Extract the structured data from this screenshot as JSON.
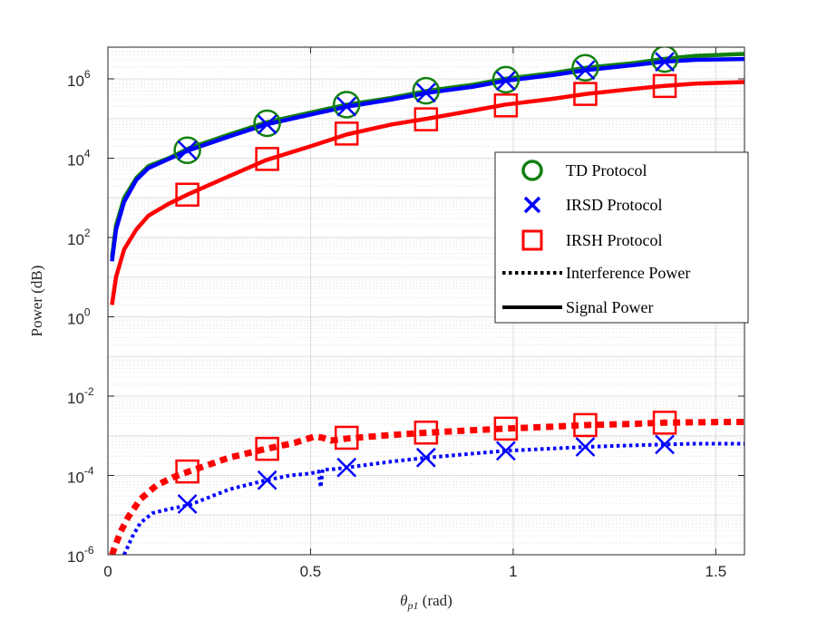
{
  "chart_data": {
    "type": "line",
    "title": "",
    "xlabel": "θ",
    "xlabel_subscript": "p1",
    "xlabel_unit": " (rad)",
    "ylabel": "Power (dB)",
    "xlim": [
      0,
      1.5708
    ],
    "y_scale": "log",
    "ylim_exponent": [
      -6,
      6.8
    ],
    "x_ticks": [
      0,
      0.5,
      1,
      1.5
    ],
    "x_tick_labels": [
      "0",
      "0.5",
      "1",
      "1.5"
    ],
    "y_ticks_exponent": [
      -6,
      -4,
      -2,
      0,
      2,
      4,
      6
    ],
    "y_tick_base": "10",
    "y_tick_exponents": [
      "-6",
      "-4",
      "-2",
      "0",
      "2",
      "4",
      "6"
    ],
    "grid": true,
    "legend_location": "right",
    "legend": [
      {
        "label": "TD Protocol",
        "marker": "circle",
        "color": "#118011"
      },
      {
        "label": "IRSD Protocol",
        "marker": "x",
        "color": "#0000ff"
      },
      {
        "label": "IRSH Protocol",
        "marker": "square",
        "color": "#ff0000"
      },
      {
        "label": "Interference Power",
        "style": "dotted",
        "color": "#000000"
      },
      {
        "label": "Signal Power",
        "style": "solid",
        "color": "#000000"
      }
    ],
    "series": [
      {
        "name": "TD Protocol - Signal Power",
        "color": "#118011",
        "style": "solid",
        "marker": "circle",
        "x": [
          0.01,
          0.02,
          0.04,
          0.07,
          0.1,
          0.15,
          0.2,
          0.3,
          0.39,
          0.5,
          0.59,
          0.7,
          0.79,
          0.9,
          0.98,
          1.1,
          1.18,
          1.3,
          1.37,
          1.45,
          1.57
        ],
        "y_exponent": [
          1.5,
          2.3,
          3.0,
          3.5,
          3.8,
          4.0,
          4.25,
          4.6,
          4.9,
          5.15,
          5.35,
          5.52,
          5.7,
          5.85,
          6.0,
          6.15,
          6.28,
          6.4,
          6.5,
          6.58,
          6.63
        ],
        "marker_x": [
          0.196,
          0.393,
          0.589,
          0.785,
          0.982,
          1.178,
          1.374
        ],
        "marker_y_exponent": [
          4.2,
          4.88,
          5.35,
          5.7,
          5.98,
          6.28,
          6.5
        ]
      },
      {
        "name": "IRSD Protocol - Signal Power",
        "color": "#0000ff",
        "style": "solid",
        "marker": "x",
        "x": [
          0.01,
          0.02,
          0.04,
          0.07,
          0.1,
          0.15,
          0.2,
          0.3,
          0.39,
          0.5,
          0.59,
          0.7,
          0.79,
          0.9,
          0.98,
          1.1,
          1.18,
          1.3,
          1.37,
          1.45,
          1.57
        ],
        "y_exponent": [
          1.4,
          2.2,
          2.9,
          3.45,
          3.75,
          3.98,
          4.2,
          4.55,
          4.85,
          5.1,
          5.3,
          5.48,
          5.65,
          5.8,
          5.95,
          6.1,
          6.22,
          6.35,
          6.43,
          6.48,
          6.5
        ],
        "marker_x": [
          0.196,
          0.393,
          0.589,
          0.785,
          0.982,
          1.178,
          1.374
        ],
        "marker_y_exponent": [
          4.2,
          4.85,
          5.3,
          5.65,
          5.95,
          6.22,
          6.43
        ]
      },
      {
        "name": "IRSH Protocol - Signal Power",
        "color": "#ff0000",
        "style": "solid",
        "marker": "square",
        "x": [
          0.01,
          0.02,
          0.04,
          0.07,
          0.1,
          0.15,
          0.2,
          0.3,
          0.39,
          0.5,
          0.59,
          0.7,
          0.79,
          0.9,
          0.98,
          1.1,
          1.18,
          1.3,
          1.37,
          1.45,
          1.57
        ],
        "y_exponent": [
          0.3,
          1.0,
          1.7,
          2.2,
          2.55,
          2.85,
          3.1,
          3.55,
          3.95,
          4.3,
          4.6,
          4.85,
          5.0,
          5.2,
          5.35,
          5.5,
          5.62,
          5.75,
          5.82,
          5.88,
          5.92
        ],
        "marker_x": [
          0.196,
          0.393,
          0.589,
          0.785,
          0.982,
          1.178,
          1.374
        ],
        "marker_y_exponent": [
          3.08,
          3.98,
          4.62,
          4.98,
          5.33,
          5.62,
          5.82
        ]
      },
      {
        "name": "IRSH Protocol - Interference Power",
        "color": "#ff0000",
        "style": "dotted",
        "marker": "square",
        "x": [
          0.01,
          0.03,
          0.05,
          0.08,
          0.12,
          0.16,
          0.2,
          0.3,
          0.39,
          0.46,
          0.51,
          0.53,
          0.55,
          0.59,
          0.7,
          0.79,
          0.9,
          0.98,
          1.1,
          1.18,
          1.3,
          1.37,
          1.45,
          1.57
        ],
        "y_exponent": [
          -6.0,
          -5.45,
          -5.05,
          -4.6,
          -4.25,
          -4.05,
          -3.9,
          -3.55,
          -3.33,
          -3.18,
          -3.02,
          -3.05,
          -3.12,
          -3.07,
          -2.98,
          -2.92,
          -2.86,
          -2.82,
          -2.77,
          -2.73,
          -2.7,
          -2.67,
          -2.66,
          -2.65
        ],
        "marker_x": [
          0.196,
          0.393,
          0.589,
          0.785,
          0.982,
          1.178,
          1.374
        ],
        "marker_y_exponent": [
          -3.9,
          -3.33,
          -3.05,
          -2.92,
          -2.82,
          -2.73,
          -2.67
        ]
      },
      {
        "name": "IRSD Protocol - Interference Power",
        "color": "#0000ff",
        "style": "dotted",
        "marker": "x",
        "x": [
          0.04,
          0.06,
          0.08,
          0.11,
          0.15,
          0.2,
          0.3,
          0.39,
          0.45,
          0.5,
          0.52,
          0.525,
          0.53,
          0.55,
          0.59,
          0.7,
          0.79,
          0.9,
          0.98,
          1.1,
          1.18,
          1.3,
          1.37,
          1.45,
          1.57
        ],
        "y_exponent": [
          -6.0,
          -5.55,
          -5.2,
          -4.95,
          -4.85,
          -4.75,
          -4.35,
          -4.12,
          -4.0,
          -3.95,
          -3.9,
          -4.3,
          -3.85,
          -3.85,
          -3.8,
          -3.65,
          -3.55,
          -3.45,
          -3.38,
          -3.32,
          -3.28,
          -3.24,
          -3.22,
          -3.2,
          -3.2
        ],
        "marker_x": [
          0.196,
          0.393,
          0.589,
          0.785,
          0.982,
          1.178,
          1.374
        ],
        "marker_y_exponent": [
          -4.72,
          -4.12,
          -3.8,
          -3.55,
          -3.38,
          -3.28,
          -3.22
        ]
      }
    ]
  }
}
